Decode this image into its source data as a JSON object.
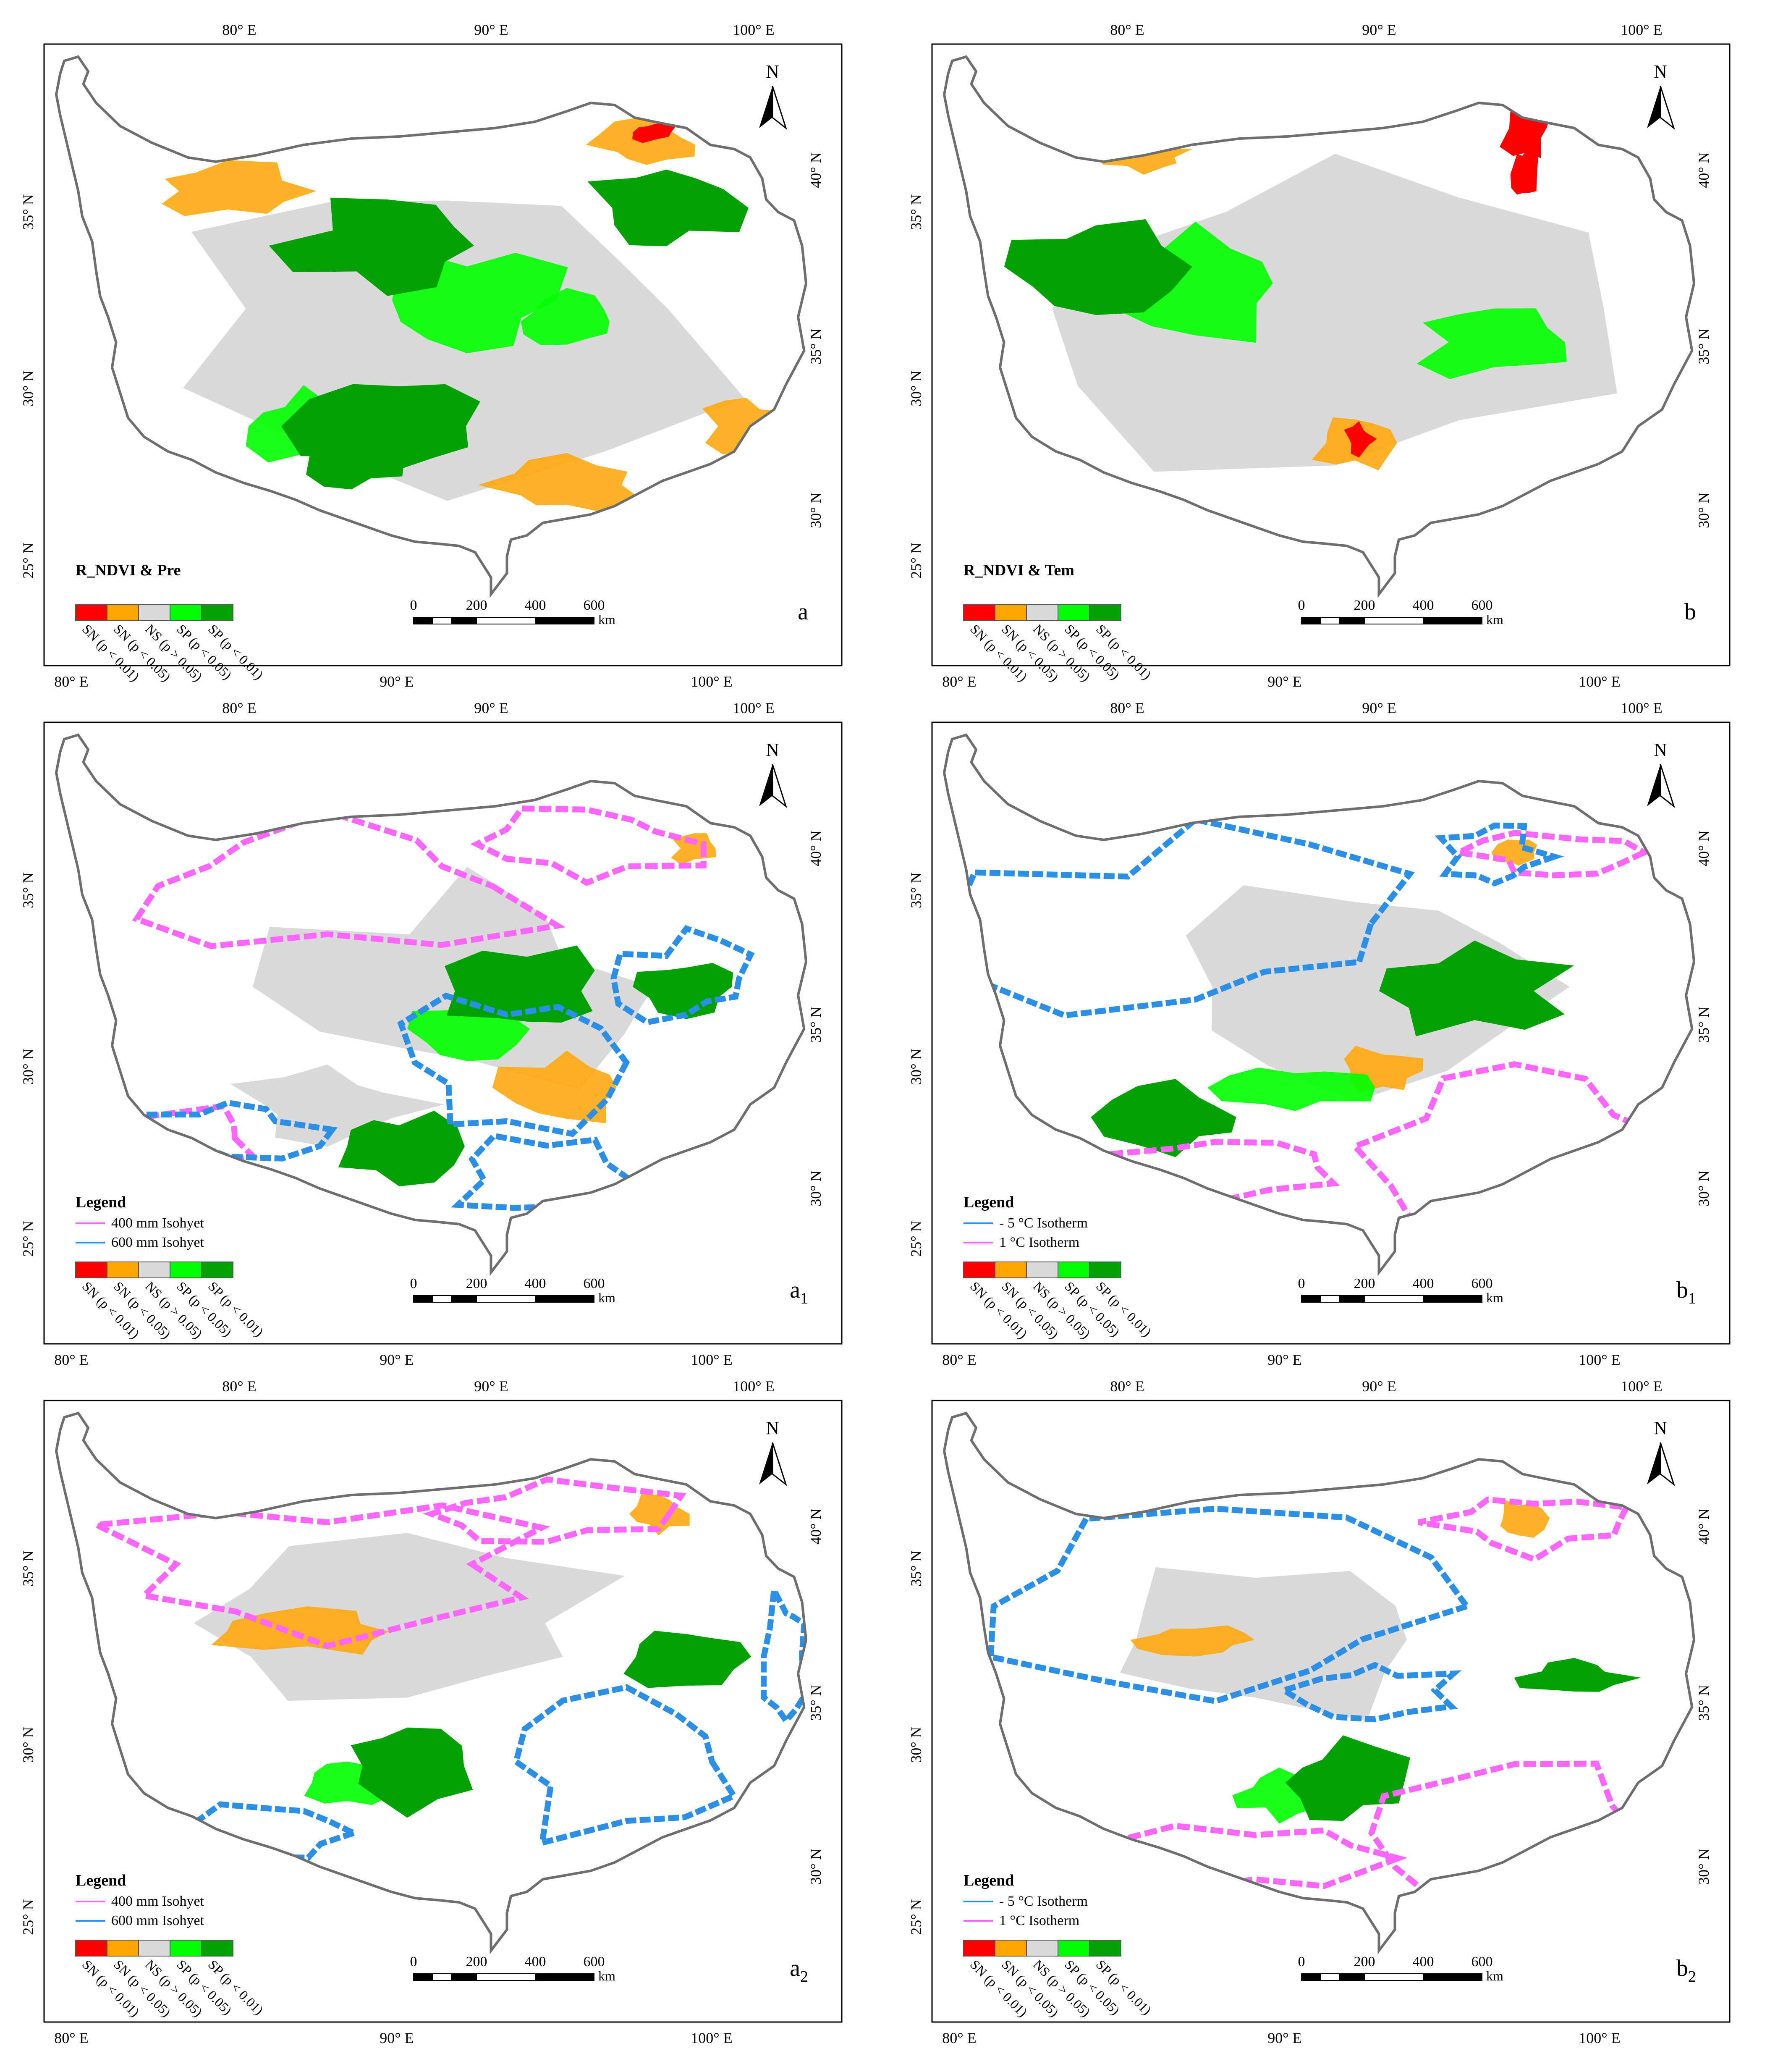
{
  "figure": {
    "north_label": "N",
    "scale_bar": {
      "ticks": [
        "0",
        "200",
        "400",
        "600"
      ],
      "unit": "km"
    },
    "lon_labels_top": [
      "80° E",
      "90° E",
      "100° E"
    ],
    "lon_labels_bottom": [
      "80° E",
      "90° E",
      "100° E"
    ],
    "lat_labels_left": [
      "35° N",
      "30° N",
      "25° N"
    ],
    "lat_labels_right": [
      "40° N",
      "35° N",
      "30° N"
    ],
    "significance_legend": [
      {
        "key": "SN",
        "label": "SN (p < 0.01)",
        "color": "#ff0000"
      },
      {
        "key": "SN",
        "label": "SN (p < 0.05)",
        "color": "#ffa500"
      },
      {
        "key": "NS",
        "label": "NS (p > 0.05)",
        "color": "#d9d9d9"
      },
      {
        "key": "SP",
        "label": "SP (p < 0.05)",
        "color": "#00ff00"
      },
      {
        "key": "SP",
        "label": "SP (p < 0.01)",
        "color": "#00a000"
      }
    ],
    "colors": {
      "frame": "#000000",
      "boundary": "#6e6e6e",
      "ns_fill": "#d9d9d9",
      "isoline_pink": "#ff66ff",
      "isoline_blue": "#2b8fe6",
      "sp01": "#00a000",
      "sp05": "#00ff00",
      "sn01": "#ff0000",
      "sn05": "#ffa500"
    },
    "panels": [
      {
        "id": "a",
        "letter": "a",
        "subscript": "",
        "legend_title": "R_NDVI & Pre",
        "legend_lines": []
      },
      {
        "id": "b",
        "letter": "b",
        "subscript": "",
        "legend_title": "R_NDVI & Tem",
        "legend_lines": []
      },
      {
        "id": "a1",
        "letter": "a",
        "subscript": "1",
        "legend_title": "Legend",
        "legend_lines": [
          {
            "label": "400 mm Isohyet",
            "color": "#ff66ff"
          },
          {
            "label": "600 mm Isohyet",
            "color": "#2b8fe6"
          }
        ]
      },
      {
        "id": "b1",
        "letter": "b",
        "subscript": "1",
        "legend_title": "Legend",
        "legend_lines": [
          {
            "label": "- 5 °C Isotherm",
            "color": "#2b8fe6"
          },
          {
            "label": "1 °C Isotherm",
            "color": "#ff66ff"
          }
        ]
      },
      {
        "id": "a2",
        "letter": "a",
        "subscript": "2",
        "legend_title": "Legend",
        "legend_lines": [
          {
            "label": "400 mm Isohyet",
            "color": "#ff66ff"
          },
          {
            "label": "600 mm Isohyet",
            "color": "#2b8fe6"
          }
        ]
      },
      {
        "id": "b2",
        "letter": "b",
        "subscript": "2",
        "legend_title": "Legend",
        "legend_lines": [
          {
            "label": "- 5 °C Isotherm",
            "color": "#2b8fe6"
          },
          {
            "label": "1 °C Isotherm",
            "color": "#ff66ff"
          }
        ]
      }
    ]
  }
}
